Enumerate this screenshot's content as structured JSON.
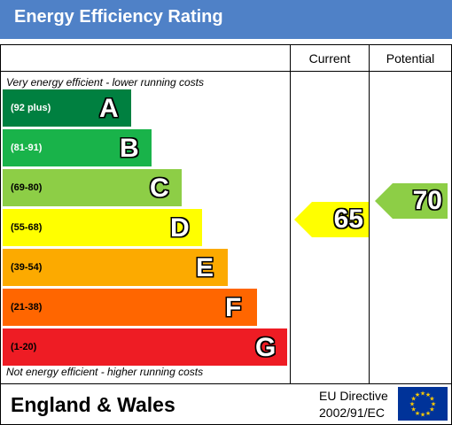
{
  "header": {
    "title": "Energy Efficiency Rating"
  },
  "columns": {
    "current": "Current",
    "potential": "Potential"
  },
  "notes": {
    "top": "Very energy efficient - lower running costs",
    "bottom": "Not energy efficient - higher running costs"
  },
  "chart_data": {
    "type": "bar",
    "title": "Energy Efficiency Rating",
    "bands": [
      {
        "letter": "A",
        "range": "(92 plus)",
        "color": "#008040",
        "text_color": "#ffffff"
      },
      {
        "letter": "B",
        "range": "(81-91)",
        "color": "#19b34a",
        "text_color": "#ffffff"
      },
      {
        "letter": "C",
        "range": "(69-80)",
        "color": "#8dce46",
        "text_color": "#000000"
      },
      {
        "letter": "D",
        "range": "(55-68)",
        "color": "#ffff00",
        "text_color": "#000000"
      },
      {
        "letter": "E",
        "range": "(39-54)",
        "color": "#fcaa00",
        "text_color": "#000000"
      },
      {
        "letter": "F",
        "range": "(21-38)",
        "color": "#ff6600",
        "text_color": "#000000"
      },
      {
        "letter": "G",
        "range": "(1-20)",
        "color": "#ee1c24",
        "text_color": "#000000"
      }
    ],
    "current": {
      "value": "65",
      "band": "D",
      "color": "#ffff00"
    },
    "potential": {
      "value": "70",
      "band": "C",
      "color": "#8dce46"
    }
  },
  "footer": {
    "region": "England & Wales",
    "directive_line1": "EU Directive",
    "directive_line2": "2002/91/EC"
  }
}
